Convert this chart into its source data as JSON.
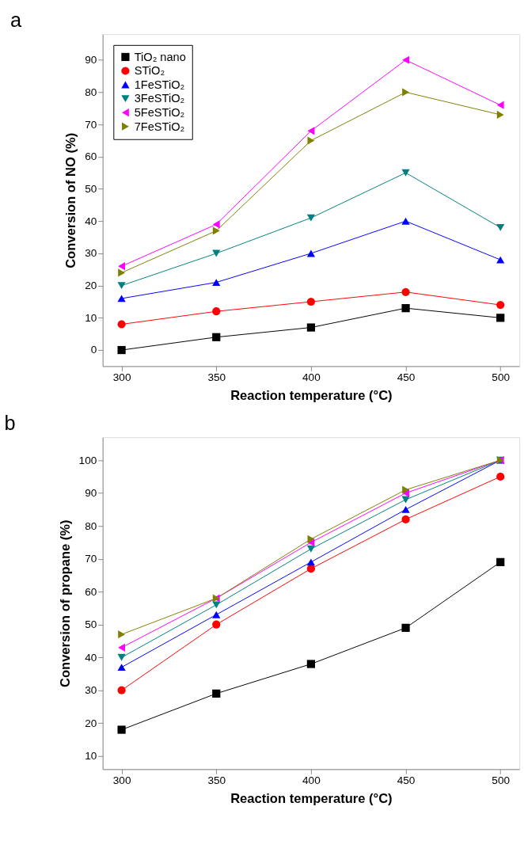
{
  "chart_data": [
    {
      "type": "line",
      "title": "a",
      "xlabel": "Reaction temperature (°C)",
      "ylabel": "Conversion of NO (%)",
      "x": [
        300,
        350,
        400,
        450,
        500
      ],
      "xlim": [
        290,
        510
      ],
      "xticks": [
        300,
        350,
        400,
        450,
        500
      ],
      "ylim": [
        -5,
        98
      ],
      "yticks": [
        0,
        10,
        20,
        30,
        40,
        50,
        60,
        70,
        80,
        90
      ],
      "legend": "top left",
      "grid": false,
      "series": [
        {
          "name": "TiO₂ nano",
          "color": "#000000",
          "marker": "square",
          "values": [
            0,
            4,
            7,
            13,
            10
          ]
        },
        {
          "name": "STiO₂",
          "color": "#ff0000",
          "marker": "circle",
          "values": [
            8,
            12,
            15,
            18,
            14
          ]
        },
        {
          "name": "1FeSTiO₂",
          "color": "#0000ff",
          "marker": "triangle-up",
          "values": [
            16,
            21,
            30,
            40,
            28
          ]
        },
        {
          "name": "3FeSTiO₂",
          "color": "#008080",
          "marker": "triangle-down",
          "values": [
            20,
            30,
            41,
            55,
            38
          ]
        },
        {
          "name": "5FeSTiO₂",
          "color": "#ff00ff",
          "marker": "triangle-left",
          "values": [
            26,
            39,
            68,
            90,
            76
          ]
        },
        {
          "name": "7FeSTiO₂",
          "color": "#808000",
          "marker": "triangle-right",
          "values": [
            24,
            37,
            65,
            80,
            73
          ]
        }
      ]
    },
    {
      "type": "line",
      "title": "b",
      "xlabel": "Reaction temperature (°C)",
      "ylabel": "Conversion of propane (%)",
      "x": [
        300,
        350,
        400,
        450,
        500
      ],
      "xlim": [
        290,
        510
      ],
      "xticks": [
        300,
        350,
        400,
        450,
        500
      ],
      "ylim": [
        6,
        107
      ],
      "yticks": [
        10,
        20,
        30,
        40,
        50,
        60,
        70,
        80,
        90,
        100
      ],
      "legend": "top left",
      "grid": false,
      "series": [
        {
          "name": "TiO₂ nano",
          "color": "#000000",
          "marker": "square",
          "values": [
            18,
            29,
            38,
            49,
            69
          ]
        },
        {
          "name": "STiO₂",
          "color": "#ff0000",
          "marker": "circle",
          "values": [
            30,
            50,
            67,
            82,
            95
          ]
        },
        {
          "name": "1FeSTiO₂",
          "color": "#0000ff",
          "marker": "triangle-up",
          "values": [
            37,
            53,
            69,
            85,
            100
          ]
        },
        {
          "name": "3FeSTiO₂",
          "color": "#008080",
          "marker": "triangle-down",
          "values": [
            40,
            56,
            73,
            88,
            100
          ]
        },
        {
          "name": "5FeSTiO₂",
          "color": "#ff00ff",
          "marker": "triangle-left",
          "values": [
            43,
            58,
            75,
            90,
            100
          ]
        },
        {
          "name": "7FeSTiO₂",
          "color": "#808000",
          "marker": "triangle-right",
          "values": [
            47,
            58,
            76,
            91,
            100
          ]
        }
      ]
    }
  ]
}
